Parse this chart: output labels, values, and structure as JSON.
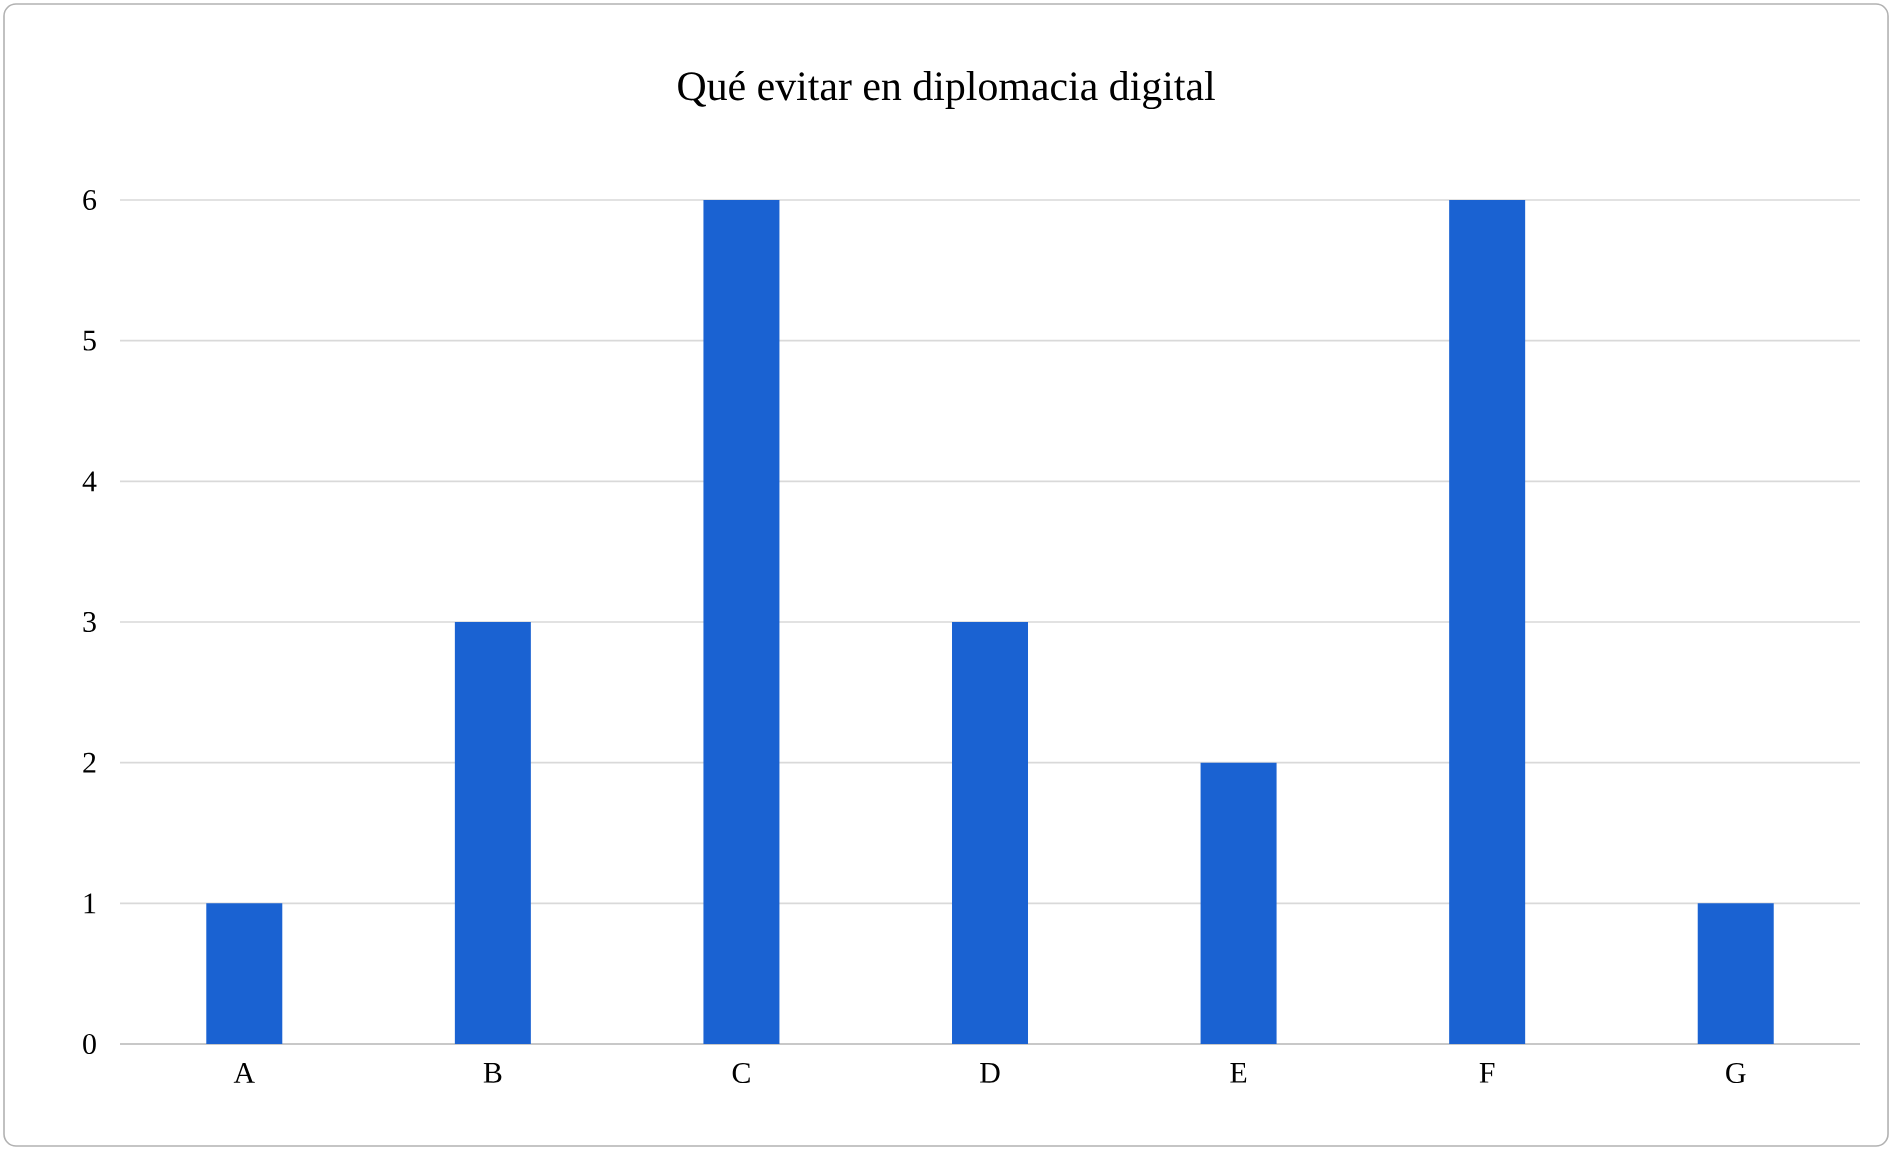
{
  "chart_data": {
    "type": "bar",
    "title": "Qué evitar en diplomacia digital",
    "categories": [
      "A",
      "B",
      "C",
      "D",
      "E",
      "F",
      "G"
    ],
    "values": [
      1,
      3,
      6,
      3,
      2,
      6,
      1
    ],
    "color": "#1a62d2",
    "ylim": [
      0,
      6
    ],
    "yticks": [
      0,
      1,
      2,
      3,
      4,
      5,
      6
    ],
    "grid": "y"
  }
}
